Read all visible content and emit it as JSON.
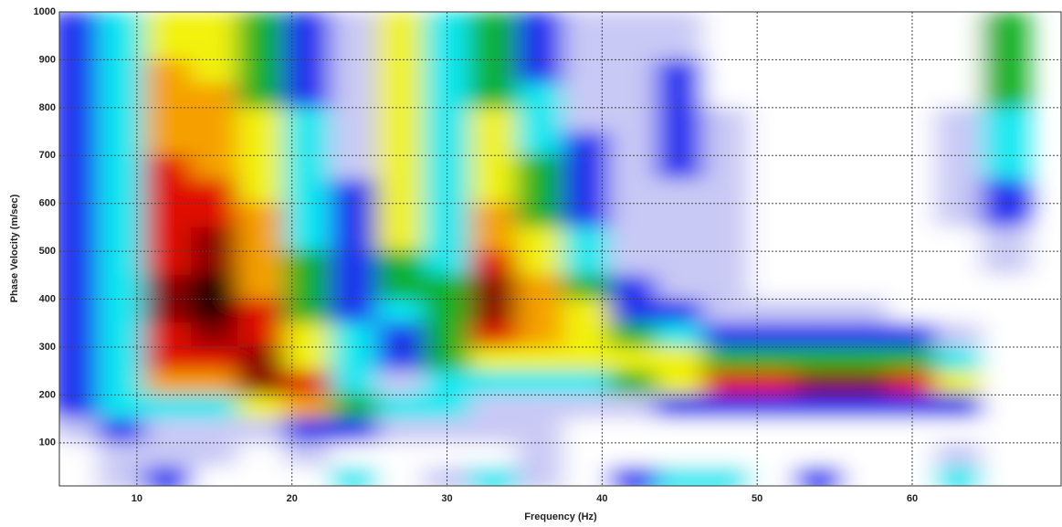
{
  "chart_data": {
    "type": "heatmap",
    "x_label": "Frequency (Hz)",
    "y_label": "Phase Velocity (m/sec)",
    "xlim": [
      5,
      69.6
    ],
    "ylim": [
      10,
      1000
    ],
    "xticks": [
      10,
      20,
      30,
      40,
      50,
      60
    ],
    "yticks": [
      100,
      200,
      300,
      400,
      500,
      600,
      700,
      800,
      900,
      1000
    ],
    "grid": true,
    "colors": [
      "#ffffff",
      "#c9c9f5",
      "#1a2cf0",
      "#10e8f0",
      "#0bb020",
      "#f2f20a",
      "#f5a000",
      "#e01000",
      "#8a0000",
      "#200000"
    ],
    "x": [
      6,
      9,
      12,
      15,
      18,
      21,
      24,
      27,
      30,
      33,
      36,
      39,
      42,
      45,
      48,
      51,
      54,
      57,
      60,
      63,
      66
    ],
    "y": [
      975,
      925,
      875,
      825,
      775,
      725,
      675,
      625,
      575,
      525,
      475,
      425,
      375,
      325,
      275,
      225,
      175,
      125,
      75,
      25
    ],
    "z": [
      [
        2,
        3,
        5,
        5,
        4,
        2,
        1,
        5,
        3,
        4,
        2,
        1,
        1,
        1,
        0,
        0,
        0,
        0,
        0,
        0,
        4
      ],
      [
        2,
        3,
        5,
        5,
        4,
        2,
        1,
        5,
        3,
        4,
        2,
        1,
        1,
        1,
        0,
        0,
        0,
        0,
        0,
        0,
        4
      ],
      [
        2,
        3,
        6,
        5,
        4,
        2,
        1,
        5,
        3,
        4,
        2,
        1,
        1,
        2,
        0,
        0,
        0,
        0,
        0,
        0,
        4
      ],
      [
        2,
        3,
        6,
        6,
        4,
        2,
        1,
        5,
        3,
        4,
        3,
        1,
        1,
        2,
        0,
        0,
        0,
        0,
        0,
        0,
        4
      ],
      [
        2,
        3,
        6,
        6,
        5,
        3,
        1,
        5,
        3,
        5,
        3,
        1,
        1,
        2,
        1,
        0,
        0,
        0,
        0,
        1,
        3
      ],
      [
        2,
        3,
        6,
        6,
        5,
        3,
        1,
        5,
        3,
        5,
        3,
        2,
        1,
        2,
        1,
        0,
        0,
        0,
        0,
        1,
        3
      ],
      [
        2,
        3,
        7,
        6,
        5,
        3,
        1,
        5,
        3,
        5,
        4,
        2,
        1,
        2,
        1,
        0,
        0,
        0,
        0,
        1,
        3
      ],
      [
        2,
        3,
        7,
        7,
        5,
        3,
        2,
        5,
        3,
        5,
        4,
        2,
        1,
        1,
        1,
        0,
        0,
        0,
        0,
        1,
        2
      ],
      [
        2,
        3,
        7,
        7,
        6,
        3,
        2,
        5,
        3,
        6,
        4,
        2,
        1,
        1,
        1,
        0,
        0,
        0,
        0,
        1,
        2
      ],
      [
        2,
        3,
        7,
        8,
        6,
        3,
        2,
        5,
        3,
        6,
        5,
        3,
        1,
        1,
        1,
        0,
        0,
        0,
        0,
        0,
        1
      ],
      [
        2,
        3,
        7,
        8,
        6,
        4,
        2,
        4,
        3,
        7,
        5,
        3,
        1,
        1,
        1,
        0,
        0,
        0,
        0,
        0,
        1
      ],
      [
        2,
        3,
        8,
        9,
        6,
        4,
        2,
        4,
        4,
        8,
        6,
        4,
        2,
        1,
        1,
        0,
        0,
        0,
        0,
        0,
        0
      ],
      [
        2,
        3,
        8,
        9,
        7,
        4,
        2,
        3,
        4,
        8,
        6,
        5,
        2,
        2,
        1,
        1,
        1,
        1,
        0,
        0,
        0
      ],
      [
        2,
        3,
        7,
        8,
        7,
        5,
        3,
        2,
        4,
        7,
        6,
        5,
        4,
        3,
        2,
        2,
        2,
        2,
        2,
        1,
        0
      ],
      [
        2,
        3,
        7,
        7,
        8,
        5,
        3,
        2,
        4,
        5,
        5,
        5,
        5,
        5,
        4,
        4,
        4,
        4,
        4,
        3,
        0
      ],
      [
        2,
        3,
        6,
        6,
        8,
        7,
        3,
        1,
        3,
        3,
        3,
        3,
        4,
        5,
        7,
        7,
        8,
        8,
        7,
        5,
        0
      ],
      [
        2,
        3,
        3,
        3,
        5,
        6,
        4,
        3,
        3,
        1,
        1,
        1,
        1,
        2,
        2,
        2,
        2,
        2,
        2,
        2,
        0
      ],
      [
        1,
        2,
        1,
        1,
        1,
        2,
        2,
        1,
        1,
        1,
        1,
        0,
        0,
        0,
        0,
        0,
        0,
        0,
        0,
        0,
        0
      ],
      [
        0,
        1,
        1,
        1,
        0,
        1,
        0,
        0,
        0,
        0,
        1,
        0,
        0,
        0,
        0,
        0,
        0,
        0,
        0,
        1,
        0
      ],
      [
        0,
        1,
        2,
        0,
        0,
        0,
        3,
        0,
        1,
        3,
        1,
        0,
        2,
        3,
        3,
        0,
        2,
        0,
        0,
        3,
        0
      ]
    ]
  }
}
